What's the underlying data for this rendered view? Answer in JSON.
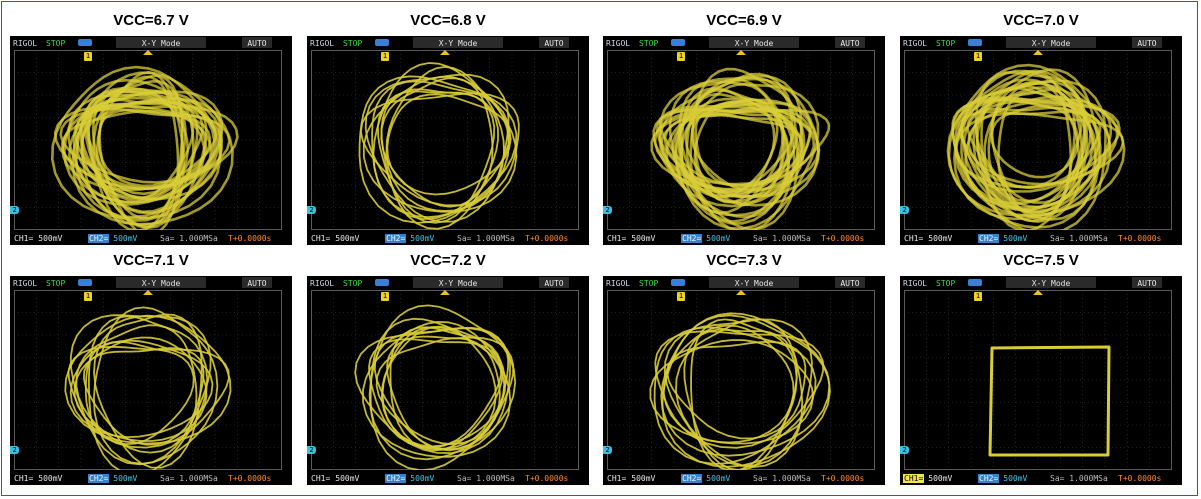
{
  "panels": [
    {
      "caption": "VCC=6.7 V",
      "style": "dense"
    },
    {
      "caption": "VCC=6.8 V",
      "style": "loops"
    },
    {
      "caption": "VCC=6.9 V",
      "style": "dense"
    },
    {
      "caption": "VCC=7.0 V",
      "style": "dense"
    },
    {
      "caption": "VCC=7.1 V",
      "style": "loops"
    },
    {
      "caption": "VCC=7.2 V",
      "style": "loops"
    },
    {
      "caption": "VCC=7.3 V",
      "style": "loops"
    },
    {
      "caption": "VCC=7.5 V",
      "style": "square"
    }
  ],
  "scope": {
    "brand": "RIGOL",
    "state": "STOP",
    "mode": "X-Y  Mode",
    "auto": "AUTO",
    "ch1": "CH1=",
    "ch1_scale": "500mV",
    "ch2": "CH2=",
    "ch2_scale": "500mV",
    "sample": "Sa= 1.000MSa",
    "trigger": "T+0.0000s",
    "marker1": "1",
    "marker2": "2"
  },
  "colors": {
    "trace": "#d8cc38",
    "grid": "#3a3a3a",
    "screen": "#000000"
  }
}
